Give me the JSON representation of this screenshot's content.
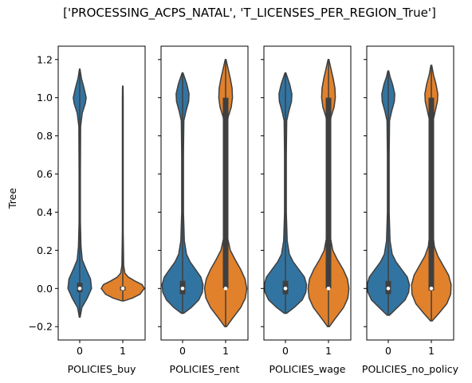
{
  "chart_data": {
    "type": "violin",
    "title": "['PROCESSING_ACPS_NATAL', 'T_LICENSES_PER_REGION_True']",
    "ylabel": "Tree",
    "ylim": [
      -0.27,
      1.27
    ],
    "yticks": [
      -0.2,
      0.0,
      0.2,
      0.4,
      0.6,
      0.8,
      1.0,
      1.2
    ],
    "ytick_labels": [
      "−0.2",
      "0.0",
      "0.2",
      "0.4",
      "0.6",
      "0.8",
      "1.0",
      "1.2"
    ],
    "categories": [
      "0",
      "1"
    ],
    "colors": {
      "0": "#3274a1",
      "1": "#e1812c"
    },
    "edge_color": "#3f3f3f",
    "grid": false,
    "panels": [
      {
        "xlabel": "POLICIES_buy",
        "violins": [
          {
            "category": "0",
            "min": -0.15,
            "max": 1.15,
            "median": 0.0,
            "q1": -0.02,
            "q3": 0.03,
            "shape": [
              [
                -0.15,
                0.02
              ],
              [
                -0.1,
                0.1
              ],
              [
                -0.05,
                0.35
              ],
              [
                0.0,
                0.55
              ],
              [
                0.05,
                0.5
              ],
              [
                0.1,
                0.3
              ],
              [
                0.15,
                0.12
              ],
              [
                0.22,
                0.06
              ],
              [
                0.35,
                0.03
              ],
              [
                0.6,
                0.03
              ],
              [
                0.85,
                0.04
              ],
              [
                0.92,
                0.12
              ],
              [
                0.97,
                0.26
              ],
              [
                1.0,
                0.3
              ],
              [
                1.05,
                0.2
              ],
              [
                1.1,
                0.08
              ],
              [
                1.15,
                0.01
              ]
            ]
          },
          {
            "category": "1",
            "min": -0.065,
            "max": 1.06,
            "median": 0.0,
            "q1": -0.01,
            "q3": 0.01,
            "shape": [
              [
                -0.065,
                0.05
              ],
              [
                -0.05,
                0.45
              ],
              [
                -0.03,
                0.8
              ],
              [
                0.0,
                1.0
              ],
              [
                0.02,
                0.9
              ],
              [
                0.04,
                0.55
              ],
              [
                0.06,
                0.25
              ],
              [
                0.08,
                0.1
              ],
              [
                0.12,
                0.04
              ],
              [
                0.3,
                0.02
              ],
              [
                0.8,
                0.02
              ],
              [
                1.0,
                0.02
              ],
              [
                1.06,
                0.01
              ]
            ]
          }
        ]
      },
      {
        "xlabel": "POLICIES_rent",
        "violins": [
          {
            "category": "0",
            "min": -0.13,
            "max": 1.13,
            "median": 0.0,
            "q1": -0.03,
            "q3": 0.04,
            "shape": [
              [
                -0.13,
                0.05
              ],
              [
                -0.1,
                0.4
              ],
              [
                -0.06,
                0.75
              ],
              [
                -0.02,
                0.92
              ],
              [
                0.02,
                0.95
              ],
              [
                0.06,
                0.85
              ],
              [
                0.1,
                0.6
              ],
              [
                0.14,
                0.35
              ],
              [
                0.18,
                0.18
              ],
              [
                0.25,
                0.08
              ],
              [
                0.4,
                0.04
              ],
              [
                0.7,
                0.04
              ],
              [
                0.88,
                0.06
              ],
              [
                0.93,
                0.16
              ],
              [
                0.98,
                0.28
              ],
              [
                1.02,
                0.3
              ],
              [
                1.07,
                0.2
              ],
              [
                1.11,
                0.08
              ],
              [
                1.13,
                0.02
              ]
            ]
          },
          {
            "category": "1",
            "min": -0.2,
            "max": 1.2,
            "median": 0.0,
            "q1": 0.0,
            "q3": 1.0,
            "shape": [
              [
                -0.2,
                0.04
              ],
              [
                -0.16,
                0.3
              ],
              [
                -0.1,
                0.7
              ],
              [
                -0.05,
                0.92
              ],
              [
                0.0,
                0.98
              ],
              [
                0.05,
                0.9
              ],
              [
                0.1,
                0.7
              ],
              [
                0.15,
                0.45
              ],
              [
                0.2,
                0.22
              ],
              [
                0.26,
                0.1
              ],
              [
                0.35,
                0.05
              ],
              [
                0.6,
                0.04
              ],
              [
                0.85,
                0.05
              ],
              [
                0.9,
                0.12
              ],
              [
                0.95,
                0.26
              ],
              [
                1.0,
                0.32
              ],
              [
                1.05,
                0.3
              ],
              [
                1.1,
                0.22
              ],
              [
                1.15,
                0.12
              ],
              [
                1.2,
                0.02
              ]
            ]
          }
        ]
      },
      {
        "xlabel": "POLICIES_wage",
        "violins": [
          {
            "category": "0",
            "min": -0.13,
            "max": 1.13,
            "median": 0.0,
            "q1": -0.03,
            "q3": 0.04,
            "shape": [
              [
                -0.13,
                0.05
              ],
              [
                -0.1,
                0.4
              ],
              [
                -0.06,
                0.78
              ],
              [
                -0.02,
                0.95
              ],
              [
                0.02,
                0.98
              ],
              [
                0.06,
                0.88
              ],
              [
                0.1,
                0.62
              ],
              [
                0.14,
                0.36
              ],
              [
                0.18,
                0.18
              ],
              [
                0.25,
                0.08
              ],
              [
                0.4,
                0.04
              ],
              [
                0.7,
                0.04
              ],
              [
                0.88,
                0.06
              ],
              [
                0.93,
                0.16
              ],
              [
                0.98,
                0.28
              ],
              [
                1.02,
                0.3
              ],
              [
                1.07,
                0.2
              ],
              [
                1.11,
                0.08
              ],
              [
                1.13,
                0.02
              ]
            ]
          },
          {
            "category": "1",
            "min": -0.2,
            "max": 1.2,
            "median": 0.0,
            "q1": 0.0,
            "q3": 1.0,
            "shape": [
              [
                -0.2,
                0.04
              ],
              [
                -0.16,
                0.3
              ],
              [
                -0.1,
                0.7
              ],
              [
                -0.05,
                0.9
              ],
              [
                0.0,
                0.95
              ],
              [
                0.05,
                0.88
              ],
              [
                0.1,
                0.68
              ],
              [
                0.15,
                0.42
              ],
              [
                0.2,
                0.2
              ],
              [
                0.26,
                0.1
              ],
              [
                0.35,
                0.05
              ],
              [
                0.6,
                0.04
              ],
              [
                0.85,
                0.05
              ],
              [
                0.9,
                0.12
              ],
              [
                0.95,
                0.26
              ],
              [
                1.0,
                0.32
              ],
              [
                1.05,
                0.3
              ],
              [
                1.1,
                0.22
              ],
              [
                1.15,
                0.12
              ],
              [
                1.2,
                0.02
              ]
            ]
          }
        ]
      },
      {
        "xlabel": "POLICIES_no_policy",
        "violins": [
          {
            "category": "0",
            "min": -0.14,
            "max": 1.14,
            "median": 0.0,
            "q1": -0.03,
            "q3": 0.04,
            "shape": [
              [
                -0.14,
                0.05
              ],
              [
                -0.1,
                0.42
              ],
              [
                -0.06,
                0.78
              ],
              [
                -0.02,
                0.95
              ],
              [
                0.02,
                0.98
              ],
              [
                0.06,
                0.88
              ],
              [
                0.1,
                0.62
              ],
              [
                0.14,
                0.36
              ],
              [
                0.18,
                0.18
              ],
              [
                0.25,
                0.08
              ],
              [
                0.4,
                0.04
              ],
              [
                0.7,
                0.04
              ],
              [
                0.88,
                0.06
              ],
              [
                0.93,
                0.16
              ],
              [
                0.98,
                0.28
              ],
              [
                1.02,
                0.3
              ],
              [
                1.07,
                0.2
              ],
              [
                1.11,
                0.08
              ],
              [
                1.14,
                0.02
              ]
            ]
          },
          {
            "category": "1",
            "min": -0.17,
            "max": 1.17,
            "median": 0.0,
            "q1": -0.01,
            "q3": 1.0,
            "shape": [
              [
                -0.17,
                0.04
              ],
              [
                -0.13,
                0.35
              ],
              [
                -0.08,
                0.72
              ],
              [
                -0.03,
                0.9
              ],
              [
                0.02,
                0.92
              ],
              [
                0.07,
                0.8
              ],
              [
                0.12,
                0.55
              ],
              [
                0.17,
                0.3
              ],
              [
                0.22,
                0.14
              ],
              [
                0.3,
                0.06
              ],
              [
                0.5,
                0.04
              ],
              [
                0.75,
                0.04
              ],
              [
                0.88,
                0.08
              ],
              [
                0.93,
                0.18
              ],
              [
                0.98,
                0.28
              ],
              [
                1.02,
                0.3
              ],
              [
                1.07,
                0.22
              ],
              [
                1.12,
                0.1
              ],
              [
                1.17,
                0.02
              ]
            ]
          }
        ]
      }
    ]
  }
}
